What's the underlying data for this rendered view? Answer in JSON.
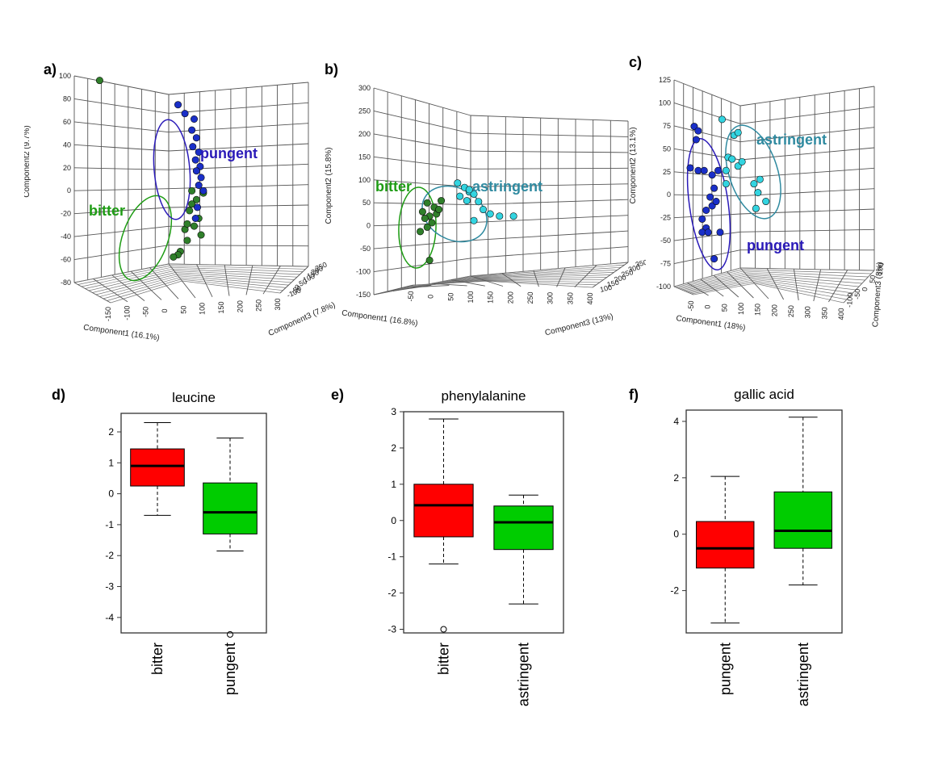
{
  "figure": {
    "panel_labels": [
      "a)",
      "b)",
      "c)",
      "d)",
      "e)",
      "f)"
    ],
    "colors": {
      "bitter": "#1e9c14",
      "pungent": "#2a1ab8",
      "astringent": "#2f8aa0",
      "green_point": "#2f7f2a",
      "blue_point": "#1a2fc8",
      "cyan_point": "#33d4e0",
      "box_red": "#ff0000",
      "box_green": "#00cc00"
    }
  },
  "chart_data": [
    {
      "id": "a",
      "type": "scatter",
      "projection": "3d",
      "xlabel": "Component1 (16.1%)",
      "ylabel": "Component2 (9.7%)",
      "zlabel": "Component3 (7.8%)",
      "yticks": [
        100,
        80,
        60,
        40,
        20,
        0,
        -20,
        -40,
        -60,
        -80
      ],
      "xticks": [
        -150,
        -100,
        -50,
        0,
        50,
        100,
        150,
        200,
        250,
        300
      ],
      "zticks": [
        -100,
        -50,
        0,
        50,
        100,
        150,
        200,
        250
      ],
      "groups": [
        {
          "name": "bitter",
          "color": "green_point",
          "points": [
            [
              -130,
              90
            ],
            [
              70,
              -10
            ],
            [
              80,
              -18
            ],
            [
              65,
              -28
            ],
            [
              85,
              -35
            ],
            [
              55,
              -45
            ],
            [
              60,
              -55
            ],
            [
              45,
              -65
            ],
            [
              40,
              -68
            ],
            [
              75,
              -42
            ],
            [
              70,
              -22
            ],
            [
              95,
              -12
            ],
            [
              60,
              -40
            ],
            [
              90,
              -50
            ],
            [
              30,
              -70
            ]
          ]
        },
        {
          "name": "pungent",
          "color": "blue_point",
          "points": [
            [
              40,
              68
            ],
            [
              55,
              60
            ],
            [
              75,
              55
            ],
            [
              70,
              45
            ],
            [
              80,
              38
            ],
            [
              72,
              30
            ],
            [
              85,
              25
            ],
            [
              78,
              18
            ],
            [
              88,
              12
            ],
            [
              80,
              8
            ],
            [
              90,
              2
            ],
            [
              85,
              -5
            ],
            [
              95,
              -10
            ],
            [
              82,
              -25
            ],
            [
              78,
              -35
            ]
          ]
        }
      ]
    },
    {
      "id": "b",
      "type": "scatter",
      "projection": "3d",
      "xlabel": "Component1 (16.8%)",
      "ylabel": "Component2 (15.8%)",
      "zlabel": "Component3 (13%)",
      "yticks": [
        300,
        250,
        200,
        150,
        100,
        50,
        0,
        -50,
        -100,
        -150
      ],
      "xticks": [
        -50,
        0,
        50,
        100,
        150,
        200,
        250,
        300,
        350,
        400
      ],
      "zticks": [
        100,
        150,
        200,
        250,
        300,
        350
      ],
      "groups": [
        {
          "name": "bitter",
          "color": "green_point",
          "points": [
            [
              30,
              25
            ],
            [
              45,
              15
            ],
            [
              20,
              5
            ],
            [
              50,
              0
            ],
            [
              35,
              -5
            ],
            [
              25,
              -10
            ],
            [
              40,
              -20
            ],
            [
              30,
              -30
            ],
            [
              55,
              10
            ],
            [
              15,
              -40
            ],
            [
              35,
              -105
            ],
            [
              60,
              30
            ]
          ]
        },
        {
          "name": "astringent",
          "color": "cyan_point",
          "points": [
            [
              95,
              70
            ],
            [
              110,
              60
            ],
            [
              120,
              50
            ],
            [
              130,
              45
            ],
            [
              100,
              40
            ],
            [
              115,
              30
            ],
            [
              140,
              28
            ],
            [
              150,
              10
            ],
            [
              165,
              0
            ],
            [
              185,
              -5
            ],
            [
              215,
              -5
            ],
            [
              120,
              55
            ],
            [
              130,
              -15
            ]
          ]
        }
      ]
    },
    {
      "id": "c",
      "type": "scatter",
      "projection": "3d",
      "xlabel": "Component1 (18%)",
      "ylabel": "Component2 (13.1%)",
      "zlabel": "Component3 (8%)",
      "yticks": [
        125,
        100,
        75,
        50,
        25,
        0,
        -25,
        -50,
        -75,
        -100
      ],
      "xticks": [
        -50,
        0,
        50,
        100,
        150,
        200,
        250,
        300,
        350,
        400
      ],
      "zticks": [
        -100,
        -50,
        0,
        50,
        100
      ],
      "groups": [
        {
          "name": "pungent",
          "color": "blue_point",
          "points": [
            [
              -40,
              65
            ],
            [
              -30,
              60
            ],
            [
              -35,
              50
            ],
            [
              -50,
              18
            ],
            [
              -30,
              15
            ],
            [
              -15,
              15
            ],
            [
              5,
              10
            ],
            [
              20,
              15
            ],
            [
              10,
              -5
            ],
            [
              0,
              -15
            ],
            [
              5,
              -25
            ],
            [
              -10,
              -30
            ],
            [
              -20,
              -40
            ],
            [
              -10,
              -50
            ],
            [
              -20,
              -55
            ],
            [
              -5,
              -55
            ],
            [
              25,
              -55
            ],
            [
              10,
              -85
            ],
            [
              15,
              -20
            ]
          ]
        },
        {
          "name": "astringent",
          "color": "cyan_point",
          "points": [
            [
              30,
              73
            ],
            [
              60,
              55
            ],
            [
              70,
              58
            ],
            [
              45,
              30
            ],
            [
              55,
              28
            ],
            [
              70,
              20
            ],
            [
              80,
              25
            ],
            [
              40,
              15
            ],
            [
              110,
              0
            ],
            [
              125,
              5
            ],
            [
              120,
              -10
            ],
            [
              115,
              -28
            ],
            [
              140,
              -20
            ],
            [
              40,
              0
            ]
          ]
        }
      ]
    },
    {
      "id": "d",
      "type": "boxplot",
      "title": "leucine",
      "categories": [
        "bitter",
        "pungent"
      ],
      "yticks": [
        "2",
        "1",
        "0",
        "-1",
        "-2",
        "-3",
        "-4"
      ],
      "ylim": [
        -4.5,
        2.6
      ],
      "boxes": [
        {
          "min": -0.7,
          "q1": 0.25,
          "median": 0.9,
          "q3": 1.45,
          "max": 2.3,
          "outliers": [],
          "color": "box_red"
        },
        {
          "min": -1.85,
          "q1": -1.3,
          "median": -0.6,
          "q3": 0.35,
          "max": 1.8,
          "outliers": [
            -4.55
          ],
          "color": "box_green"
        }
      ]
    },
    {
      "id": "e",
      "type": "boxplot",
      "title": "phenylalanine",
      "categories": [
        "bitter",
        "astringent"
      ],
      "yticks": [
        "3",
        "2",
        "1",
        "0",
        "-1",
        "-2",
        "-3"
      ],
      "ylim": [
        -3.1,
        3.0
      ],
      "boxes": [
        {
          "min": -1.2,
          "q1": -0.45,
          "median": 0.42,
          "q3": 1.0,
          "max": 2.8,
          "outliers": [
            -3.0
          ],
          "color": "box_red"
        },
        {
          "min": -2.3,
          "q1": -0.8,
          "median": -0.05,
          "q3": 0.4,
          "max": 0.7,
          "outliers": [],
          "color": "box_green"
        }
      ]
    },
    {
      "id": "f",
      "type": "boxplot",
      "title": "gallic acid",
      "categories": [
        "pungent",
        "astringent"
      ],
      "yticks": [
        "4",
        "2",
        "0",
        "-2"
      ],
      "ylim": [
        -3.5,
        4.4
      ],
      "boxes": [
        {
          "min": -3.15,
          "q1": -1.2,
          "median": -0.5,
          "q3": 0.45,
          "max": 2.05,
          "outliers": [],
          "color": "box_red"
        },
        {
          "min": -1.8,
          "q1": -0.5,
          "median": 0.12,
          "q3": 1.5,
          "max": 4.15,
          "outliers": [],
          "color": "box_green"
        }
      ]
    }
  ]
}
